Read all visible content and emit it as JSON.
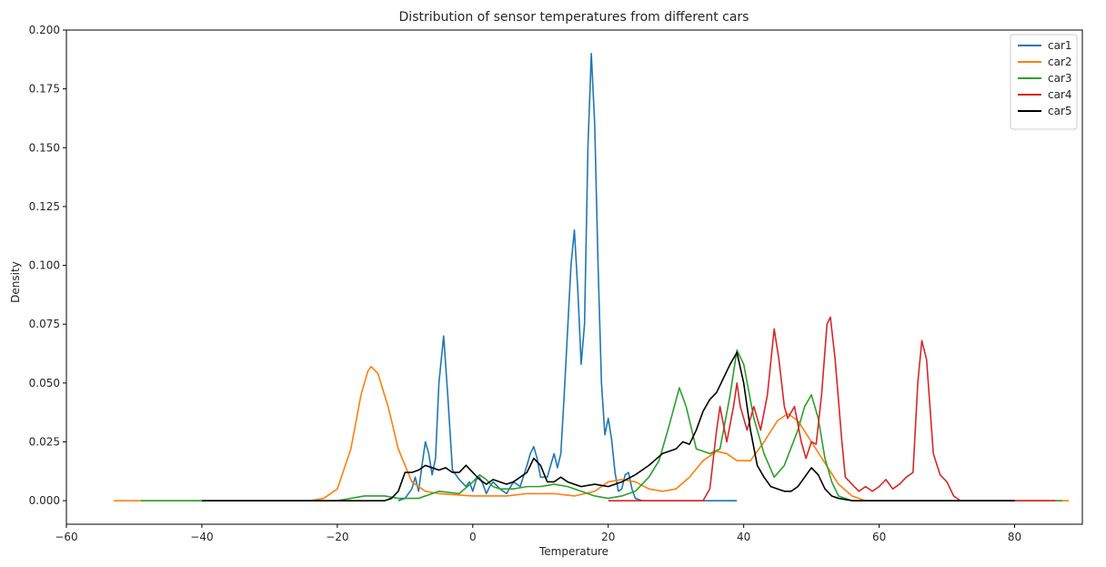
{
  "chart_data": {
    "type": "line",
    "title": "Distribution of sensor temperatures from different cars",
    "xlabel": "Temperature",
    "ylabel": "Density",
    "xlim": [
      -60,
      90
    ],
    "ylim": [
      -0.01,
      0.2
    ],
    "xticks": [
      -60,
      -40,
      -20,
      0,
      20,
      40,
      60,
      80
    ],
    "xtick_labels": [
      "−60",
      "−40",
      "−20",
      "0",
      "20",
      "40",
      "60",
      "80"
    ],
    "yticks": [
      0.0,
      0.025,
      0.05,
      0.075,
      0.1,
      0.125,
      0.15,
      0.175,
      0.2
    ],
    "ytick_labels": [
      "0.000",
      "0.025",
      "0.050",
      "0.075",
      "0.100",
      "0.125",
      "0.150",
      "0.175",
      "0.200"
    ],
    "grid": false,
    "legend_position": "top-right",
    "series": [
      {
        "name": "car1",
        "color": "#1f77b4",
        "points": [
          [
            -11,
            0
          ],
          [
            -10,
            0.001
          ],
          [
            -9,
            0.005
          ],
          [
            -8.5,
            0.01
          ],
          [
            -8,
            0.004
          ],
          [
            -7.5,
            0.015
          ],
          [
            -7,
            0.025
          ],
          [
            -6.5,
            0.02
          ],
          [
            -6,
            0.011
          ],
          [
            -5.5,
            0.018
          ],
          [
            -5,
            0.05
          ],
          [
            -4.3,
            0.07
          ],
          [
            -3.7,
            0.045
          ],
          [
            -3,
            0.013
          ],
          [
            -2,
            0.009
          ],
          [
            -1,
            0.006
          ],
          [
            -0.5,
            0.008
          ],
          [
            0,
            0.004
          ],
          [
            0.5,
            0.009
          ],
          [
            1,
            0.01
          ],
          [
            1.5,
            0.007
          ],
          [
            2,
            0.003
          ],
          [
            2.5,
            0.006
          ],
          [
            3,
            0.008
          ],
          [
            4,
            0.005
          ],
          [
            5,
            0.003
          ],
          [
            6,
            0.008
          ],
          [
            7,
            0.006
          ],
          [
            8,
            0.015
          ],
          [
            8.5,
            0.02
          ],
          [
            9,
            0.023
          ],
          [
            9.5,
            0.018
          ],
          [
            10,
            0.01
          ],
          [
            11,
            0.01
          ],
          [
            12,
            0.02
          ],
          [
            12.5,
            0.014
          ],
          [
            13,
            0.02
          ],
          [
            13.5,
            0.045
          ],
          [
            14.5,
            0.1
          ],
          [
            15,
            0.115
          ],
          [
            15.5,
            0.09
          ],
          [
            16,
            0.058
          ],
          [
            16.5,
            0.075
          ],
          [
            17,
            0.15
          ],
          [
            17.5,
            0.19
          ],
          [
            18,
            0.16
          ],
          [
            18.5,
            0.1
          ],
          [
            19,
            0.05
          ],
          [
            19.5,
            0.028
          ],
          [
            20,
            0.035
          ],
          [
            20.5,
            0.026
          ],
          [
            21,
            0.012
          ],
          [
            21.5,
            0.004
          ],
          [
            22,
            0.005
          ],
          [
            22.5,
            0.011
          ],
          [
            23,
            0.012
          ],
          [
            23.5,
            0.005
          ],
          [
            24,
            0.001
          ],
          [
            25,
            0
          ],
          [
            26,
            0
          ],
          [
            30,
            0
          ],
          [
            35,
            0
          ],
          [
            39,
            0
          ]
        ]
      },
      {
        "name": "car2",
        "color": "#ff7f0e",
        "points": [
          [
            -53,
            0
          ],
          [
            -30,
            0
          ],
          [
            -24,
            0
          ],
          [
            -22,
            0.001
          ],
          [
            -20,
            0.005
          ],
          [
            -18,
            0.022
          ],
          [
            -16.5,
            0.045
          ],
          [
            -15.5,
            0.055
          ],
          [
            -15,
            0.057
          ],
          [
            -14,
            0.054
          ],
          [
            -12.5,
            0.04
          ],
          [
            -11,
            0.022
          ],
          [
            -9,
            0.008
          ],
          [
            -7,
            0.004
          ],
          [
            -5,
            0.003
          ],
          [
            0,
            0.002
          ],
          [
            5,
            0.002
          ],
          [
            8,
            0.003
          ],
          [
            12,
            0.003
          ],
          [
            15,
            0.002
          ],
          [
            18,
            0.004
          ],
          [
            20,
            0.008
          ],
          [
            22,
            0.009
          ],
          [
            24,
            0.008
          ],
          [
            26,
            0.005
          ],
          [
            28,
            0.004
          ],
          [
            30,
            0.005
          ],
          [
            32,
            0.01
          ],
          [
            34,
            0.017
          ],
          [
            36,
            0.021
          ],
          [
            37.5,
            0.02
          ],
          [
            39,
            0.017
          ],
          [
            41,
            0.017
          ],
          [
            43,
            0.025
          ],
          [
            45,
            0.034
          ],
          [
            46.5,
            0.037
          ],
          [
            48,
            0.034
          ],
          [
            50,
            0.025
          ],
          [
            52,
            0.016
          ],
          [
            54,
            0.007
          ],
          [
            56,
            0.002
          ],
          [
            58,
            0
          ],
          [
            70,
            0
          ],
          [
            80,
            0
          ],
          [
            88,
            0
          ]
        ]
      },
      {
        "name": "car3",
        "color": "#2ca02c",
        "points": [
          [
            -49,
            0
          ],
          [
            -30,
            0
          ],
          [
            -20,
            0
          ],
          [
            -18,
            0.001
          ],
          [
            -16,
            0.002
          ],
          [
            -13,
            0.002
          ],
          [
            -11,
            0.001
          ],
          [
            -8,
            0.001
          ],
          [
            -5,
            0.004
          ],
          [
            -2,
            0.003
          ],
          [
            0,
            0.008
          ],
          [
            1,
            0.011
          ],
          [
            2,
            0.009
          ],
          [
            3,
            0.006
          ],
          [
            4,
            0.005
          ],
          [
            6,
            0.005
          ],
          [
            8,
            0.006
          ],
          [
            10,
            0.006
          ],
          [
            12,
            0.007
          ],
          [
            14,
            0.006
          ],
          [
            16,
            0.004
          ],
          [
            18,
            0.002
          ],
          [
            20,
            0.001
          ],
          [
            22,
            0.002
          ],
          [
            24,
            0.004
          ],
          [
            26,
            0.01
          ],
          [
            27.5,
            0.017
          ],
          [
            29,
            0.032
          ],
          [
            30.5,
            0.048
          ],
          [
            31.5,
            0.04
          ],
          [
            33,
            0.022
          ],
          [
            35,
            0.02
          ],
          [
            36.5,
            0.022
          ],
          [
            38,
            0.045
          ],
          [
            39,
            0.064
          ],
          [
            40,
            0.058
          ],
          [
            41.5,
            0.035
          ],
          [
            43,
            0.02
          ],
          [
            44.5,
            0.01
          ],
          [
            46,
            0.015
          ],
          [
            48,
            0.03
          ],
          [
            49,
            0.04
          ],
          [
            50,
            0.045
          ],
          [
            51,
            0.035
          ],
          [
            52,
            0.018
          ],
          [
            53,
            0.008
          ],
          [
            54,
            0.002
          ],
          [
            56,
            0
          ],
          [
            70,
            0
          ],
          [
            80,
            0
          ],
          [
            87,
            0
          ]
        ]
      },
      {
        "name": "car4",
        "color": "#d62728",
        "points": [
          [
            20,
            0
          ],
          [
            30,
            0
          ],
          [
            34,
            0
          ],
          [
            35,
            0.005
          ],
          [
            36,
            0.03
          ],
          [
            36.5,
            0.04
          ],
          [
            37.5,
            0.025
          ],
          [
            38.5,
            0.04
          ],
          [
            39,
            0.05
          ],
          [
            39.5,
            0.04
          ],
          [
            40.5,
            0.03
          ],
          [
            41.5,
            0.04
          ],
          [
            42.5,
            0.03
          ],
          [
            43.5,
            0.045
          ],
          [
            44.5,
            0.073
          ],
          [
            45.2,
            0.06
          ],
          [
            46,
            0.04
          ],
          [
            46.5,
            0.035
          ],
          [
            47.5,
            0.04
          ],
          [
            48.5,
            0.025
          ],
          [
            49.2,
            0.018
          ],
          [
            50,
            0.025
          ],
          [
            50.7,
            0.024
          ],
          [
            51.5,
            0.045
          ],
          [
            52.3,
            0.075
          ],
          [
            52.8,
            0.078
          ],
          [
            53.5,
            0.06
          ],
          [
            54.5,
            0.025
          ],
          [
            55,
            0.01
          ],
          [
            56,
            0.007
          ],
          [
            57,
            0.004
          ],
          [
            58,
            0.006
          ],
          [
            59,
            0.004
          ],
          [
            60,
            0.006
          ],
          [
            61,
            0.009
          ],
          [
            62,
            0.005
          ],
          [
            63,
            0.007
          ],
          [
            64,
            0.01
          ],
          [
            65,
            0.012
          ],
          [
            65.7,
            0.05
          ],
          [
            66.3,
            0.068
          ],
          [
            67,
            0.06
          ],
          [
            68,
            0.02
          ],
          [
            69,
            0.011
          ],
          [
            70,
            0.008
          ],
          [
            71,
            0.002
          ],
          [
            72,
            0
          ],
          [
            80,
            0
          ],
          [
            86,
            0
          ]
        ]
      },
      {
        "name": "car5",
        "color": "#000000",
        "points": [
          [
            -40,
            0
          ],
          [
            -20,
            0
          ],
          [
            -13,
            0
          ],
          [
            -12,
            0.001
          ],
          [
            -11,
            0.004
          ],
          [
            -10,
            0.012
          ],
          [
            -9,
            0.012
          ],
          [
            -8,
            0.013
          ],
          [
            -7,
            0.015
          ],
          [
            -6,
            0.014
          ],
          [
            -5,
            0.013
          ],
          [
            -4,
            0.014
          ],
          [
            -3,
            0.012
          ],
          [
            -2,
            0.012
          ],
          [
            -1,
            0.015
          ],
          [
            0,
            0.012
          ],
          [
            1,
            0.009
          ],
          [
            2,
            0.007
          ],
          [
            3,
            0.009
          ],
          [
            4,
            0.008
          ],
          [
            5,
            0.007
          ],
          [
            6,
            0.008
          ],
          [
            7,
            0.01
          ],
          [
            8,
            0.012
          ],
          [
            9,
            0.018
          ],
          [
            10,
            0.015
          ],
          [
            11,
            0.008
          ],
          [
            12,
            0.008
          ],
          [
            13,
            0.01
          ],
          [
            14,
            0.008
          ],
          [
            16,
            0.006
          ],
          [
            18,
            0.007
          ],
          [
            20,
            0.006
          ],
          [
            22,
            0.008
          ],
          [
            24,
            0.011
          ],
          [
            26,
            0.015
          ],
          [
            28,
            0.02
          ],
          [
            30,
            0.022
          ],
          [
            31,
            0.025
          ],
          [
            32,
            0.024
          ],
          [
            33,
            0.03
          ],
          [
            34,
            0.038
          ],
          [
            35,
            0.043
          ],
          [
            36,
            0.046
          ],
          [
            37,
            0.052
          ],
          [
            38,
            0.058
          ],
          [
            39,
            0.063
          ],
          [
            40,
            0.05
          ],
          [
            41,
            0.03
          ],
          [
            42,
            0.015
          ],
          [
            43,
            0.01
          ],
          [
            44,
            0.006
          ],
          [
            45,
            0.005
          ],
          [
            46,
            0.004
          ],
          [
            47,
            0.004
          ],
          [
            48,
            0.006
          ],
          [
            49,
            0.01
          ],
          [
            50,
            0.014
          ],
          [
            51,
            0.011
          ],
          [
            52,
            0.005
          ],
          [
            53,
            0.002
          ],
          [
            54,
            0.001
          ],
          [
            56,
            0
          ],
          [
            70,
            0
          ],
          [
            80,
            0
          ]
        ]
      }
    ]
  }
}
